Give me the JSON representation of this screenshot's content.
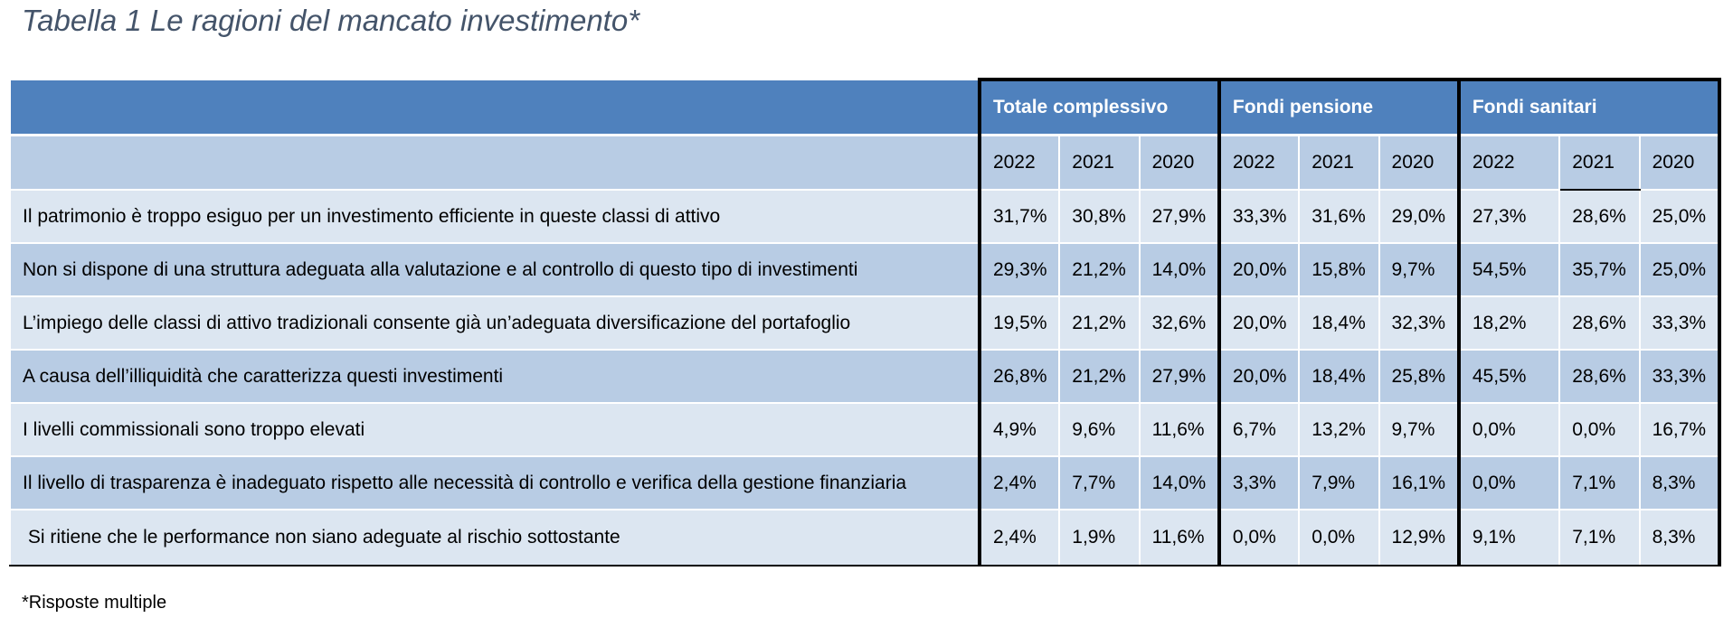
{
  "caption": "Tabella 1 Le ragioni del mancato investimento*",
  "groups": [
    "Totale complessivo",
    "Fondi pensione",
    "Fondi sanitari"
  ],
  "years": [
    "2022",
    "2021",
    "2020",
    "2022",
    "2021",
    "2020",
    "2022",
    "2021",
    "2020"
  ],
  "rows": [
    {
      "label": "Il patrimonio è troppo esiguo per un investimento efficiente in queste classi di attivo",
      "values": [
        "31,7%",
        "30,8%",
        "27,9%",
        "33,3%",
        "31,6%",
        "29,0%",
        "27,3%",
        "28,6%",
        "25,0%"
      ]
    },
    {
      "label": "Non si dispone di una struttura adeguata alla valutazione e al controllo di questo tipo di investimenti",
      "values": [
        "29,3%",
        "21,2%",
        "14,0%",
        "20,0%",
        "15,8%",
        "9,7%",
        "54,5%",
        "35,7%",
        "25,0%"
      ]
    },
    {
      "label": "L’impiego delle classi di attivo tradizionali consente già un’adeguata diversificazione del portafoglio",
      "values": [
        "19,5%",
        "21,2%",
        "32,6%",
        "20,0%",
        "18,4%",
        "32,3%",
        "18,2%",
        "28,6%",
        "33,3%"
      ]
    },
    {
      "label": "A causa dell’illiquidità che caratterizza questi investimenti",
      "values": [
        "26,8%",
        "21,2%",
        "27,9%",
        "20,0%",
        "18,4%",
        "25,8%",
        "45,5%",
        "28,6%",
        "33,3%"
      ]
    },
    {
      "label": "I livelli commissionali sono troppo elevati",
      "values": [
        "4,9%",
        "9,6%",
        "11,6%",
        "6,7%",
        "13,2%",
        "9,7%",
        "0,0%",
        "0,0%",
        "16,7%"
      ]
    },
    {
      "label": "Il livello di trasparenza è inadeguato rispetto alle necessità di controllo e verifica della gestione finanziaria",
      "values": [
        "2,4%",
        "7,7%",
        "14,0%",
        "3,3%",
        "7,9%",
        "16,1%",
        "0,0%",
        "7,1%",
        "8,3%"
      ]
    },
    {
      "label": " Si ritiene che le performance non siano adeguate al rischio sottostante",
      "values": [
        "2,4%",
        "1,9%",
        "11,6%",
        "0,0%",
        "0,0%",
        "12,9%",
        "9,1%",
        "7,1%",
        "8,3%"
      ]
    }
  ],
  "footnote": "*Risposte multiple",
  "colors": {
    "header_blue": "#4f81bd",
    "band_dark": "#b8cce4",
    "band_light": "#dce6f1",
    "caption_text": "#44546a"
  }
}
